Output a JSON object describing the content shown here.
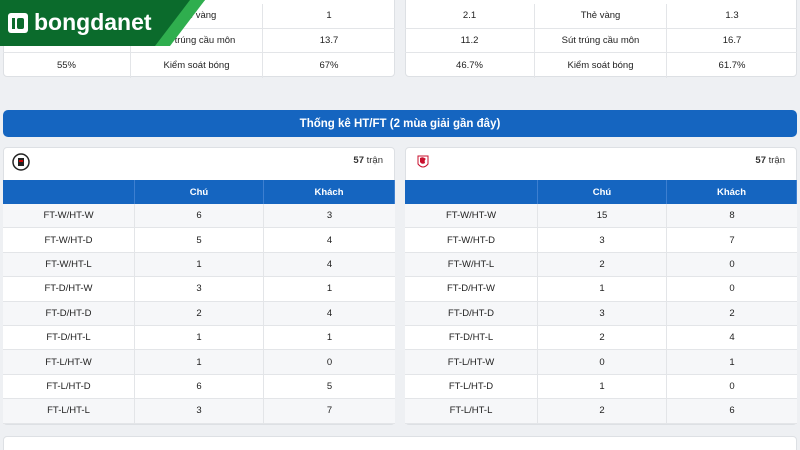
{
  "logo": "bongdanet",
  "top_stats": {
    "left": [
      {
        "label": "Thẻ vàng",
        "away": 1
      },
      {
        "label": "Sút trúng cầu môn",
        "away": 13.7
      },
      {
        "home": "55%",
        "label": "Kiểm soát bóng",
        "away": "67%"
      }
    ],
    "right": [
      {
        "home": 2.1,
        "label": "Thẻ vàng",
        "away": 1.3
      },
      {
        "home": 11.2,
        "label": "Sút trúng cầu môn",
        "away": 16.7
      },
      {
        "home": "46.7%",
        "label": "Kiểm soát bóng",
        "away": "61.7%"
      }
    ]
  },
  "htft": {
    "title": "Thống kê HT/FT (2 mùa giải gần đây)",
    "columns": [
      "Chú",
      "Khách"
    ],
    "teams": [
      {
        "matches": 57,
        "unit": "trận",
        "rows": [
          [
            "FT-W/HT-W",
            6,
            3
          ],
          [
            "FT-W/HT-D",
            5,
            4
          ],
          [
            "FT-W/HT-L",
            1,
            4
          ],
          [
            "FT-D/HT-W",
            3,
            1
          ],
          [
            "FT-D/HT-D",
            2,
            4
          ],
          [
            "FT-D/HT-L",
            1,
            1
          ],
          [
            "FT-L/HT-W",
            1,
            0
          ],
          [
            "FT-L/HT-D",
            6,
            5
          ],
          [
            "FT-L/HT-L",
            3,
            7
          ]
        ]
      },
      {
        "matches": 57,
        "unit": "trận",
        "rows": [
          [
            "FT-W/HT-W",
            15,
            8
          ],
          [
            "FT-W/HT-D",
            3,
            7
          ],
          [
            "FT-W/HT-L",
            2,
            0
          ],
          [
            "FT-D/HT-W",
            1,
            0
          ],
          [
            "FT-D/HT-D",
            3,
            2
          ],
          [
            "FT-D/HT-L",
            2,
            4
          ],
          [
            "FT-L/HT-W",
            0,
            1
          ],
          [
            "FT-L/HT-D",
            1,
            0
          ],
          [
            "FT-L/HT-L",
            2,
            6
          ]
        ]
      }
    ]
  }
}
